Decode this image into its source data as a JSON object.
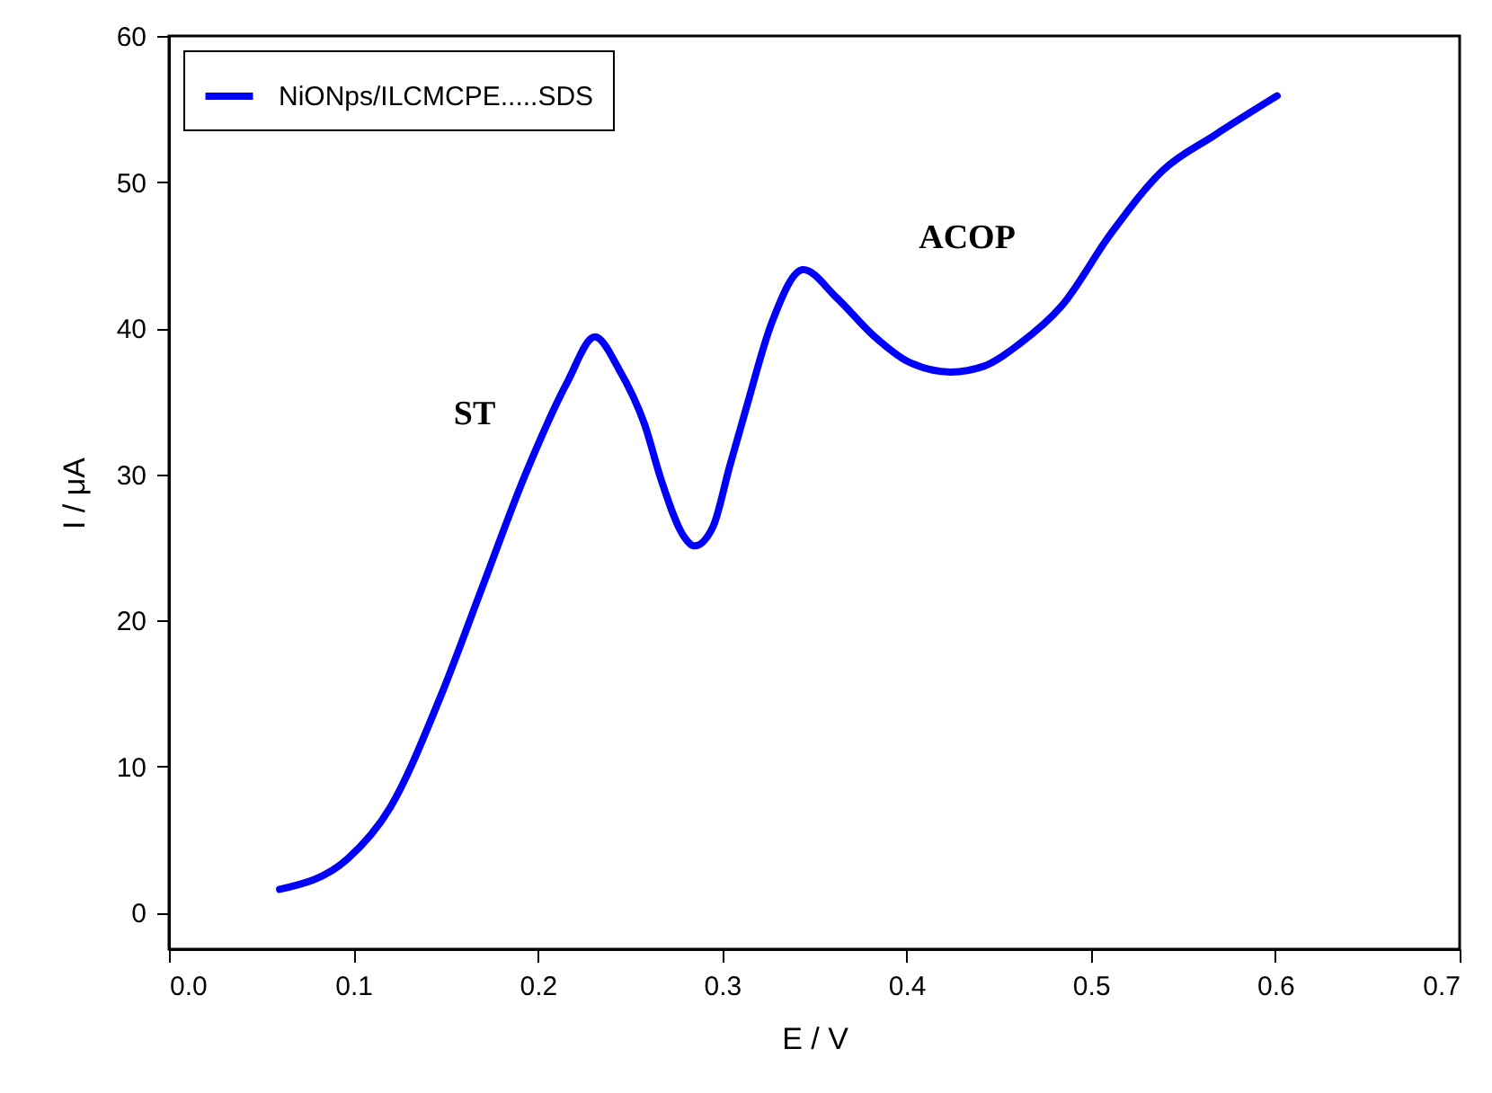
{
  "chart_data": {
    "type": "line",
    "xlabel": "E / V",
    "ylabel": "I / μA",
    "xlim": [
      0.0,
      0.7
    ],
    "xticks": [
      {
        "value": 0,
        "label": "0.0"
      },
      0.1,
      0.2,
      0.3,
      0.4,
      0.5,
      0.6,
      0.7
    ],
    "ylim": [
      -2.5,
      60
    ],
    "yticks": [
      0,
      10,
      20,
      30,
      40,
      50,
      60
    ],
    "grid": false,
    "legend": "top left",
    "marker": "none",
    "line_style": "solid",
    "x": [
      0.06,
      0.097,
      0.12,
      0.147,
      0.17,
      0.193,
      0.216,
      0.231,
      0.244,
      0.258,
      0.267,
      0.279,
      0.285,
      0.295,
      0.304,
      0.313,
      0.327,
      0.344,
      0.362,
      0.382,
      0.401,
      0.424,
      0.442,
      0.461,
      0.484,
      0.511,
      0.539,
      0.567,
      0.601
    ],
    "series": [
      {
        "name": "NiONps/ILCMCPE.....SDS",
        "color": "#0000ff",
        "values": [
          1.6,
          3.7,
          7.2,
          14.7,
          22.3,
          29.9,
          36.3,
          39.4,
          37.2,
          33.4,
          29.6,
          25.8,
          25.1,
          26.4,
          30.5,
          34.5,
          40.4,
          44.0,
          42.1,
          39.5,
          37.7,
          37.0,
          37.4,
          38.9,
          41.5,
          46.5,
          50.8,
          53.2,
          55.9
        ]
      }
    ],
    "annotations": [
      "ST",
      "ACOP"
    ]
  }
}
